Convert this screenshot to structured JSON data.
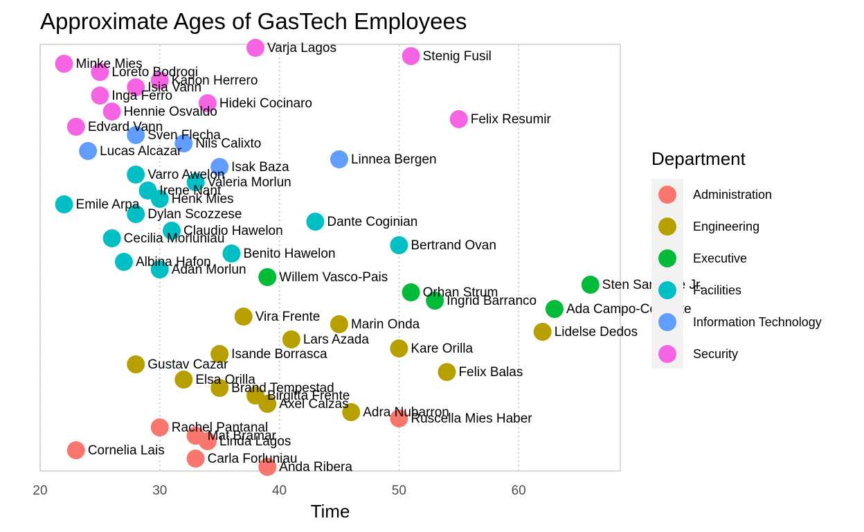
{
  "chart_data": {
    "type": "scatter",
    "title": "Approximate Ages of GasTech Employees",
    "xlabel": "Time",
    "ylabel": "",
    "xlim": [
      20,
      68.5
    ],
    "x_ticks": [
      20,
      30,
      40,
      50,
      60
    ],
    "grid": "vertical dotted",
    "legend": {
      "title": "Department",
      "placement": "right",
      "entries": [
        {
          "name": "Administration",
          "color": "#F8766D"
        },
        {
          "name": "Engineering",
          "color": "#B79F00"
        },
        {
          "name": "Executive",
          "color": "#00BA38"
        },
        {
          "name": "Facilities",
          "color": "#00BFC4"
        },
        {
          "name": "Information Technology",
          "color": "#619CFF"
        },
        {
          "name": "Security",
          "color": "#F564E3"
        }
      ]
    },
    "points": [
      {
        "label": "Varja Lagos",
        "x": 38,
        "dept": "Security"
      },
      {
        "label": "Stenig Fusil",
        "x": 51,
        "dept": "Security"
      },
      {
        "label": "Minke Mies",
        "x": 22,
        "dept": "Security"
      },
      {
        "label": "Loreto Bodrogi",
        "x": 25,
        "dept": "Security"
      },
      {
        "label": "Kanon Herrero",
        "x": 30,
        "dept": "Security"
      },
      {
        "label": "Isia Vann",
        "x": 28,
        "dept": "Security"
      },
      {
        "label": "Inga Ferro",
        "x": 25,
        "dept": "Security"
      },
      {
        "label": "Hideki Cocinaro",
        "x": 34,
        "dept": "Security"
      },
      {
        "label": "Hennie Osvaldo",
        "x": 26,
        "dept": "Security"
      },
      {
        "label": "Felix Resumir",
        "x": 55,
        "dept": "Security"
      },
      {
        "label": "Edvard Vann",
        "x": 23,
        "dept": "Security"
      },
      {
        "label": "Sven Flecha",
        "x": 28,
        "dept": "Information Technology"
      },
      {
        "label": "Nils Calixto",
        "x": 32,
        "dept": "Information Technology"
      },
      {
        "label": "Lucas Alcazar",
        "x": 24,
        "dept": "Information Technology"
      },
      {
        "label": "Linnea Bergen",
        "x": 45,
        "dept": "Information Technology"
      },
      {
        "label": "Isak Baza",
        "x": 35,
        "dept": "Information Technology"
      },
      {
        "label": "Varro Awelon",
        "x": 28,
        "dept": "Facilities"
      },
      {
        "label": "Valeria Morlun",
        "x": 33,
        "dept": "Facilities"
      },
      {
        "label": "Irene Nant",
        "x": 29,
        "dept": "Facilities"
      },
      {
        "label": "Henk Mies",
        "x": 30,
        "dept": "Facilities"
      },
      {
        "label": "Emile Arpa",
        "x": 22,
        "dept": "Facilities"
      },
      {
        "label": "Dylan Scozzese",
        "x": 28,
        "dept": "Facilities"
      },
      {
        "label": "Dante Coginian",
        "x": 43,
        "dept": "Facilities"
      },
      {
        "label": "Claudio Hawelon",
        "x": 31,
        "dept": "Facilities"
      },
      {
        "label": "Cecilia Morluniau",
        "x": 26,
        "dept": "Facilities"
      },
      {
        "label": "Bertrand Ovan",
        "x": 50,
        "dept": "Facilities"
      },
      {
        "label": "Benito Hawelon",
        "x": 36,
        "dept": "Facilities"
      },
      {
        "label": "Albina Hafon",
        "x": 27,
        "dept": "Facilities"
      },
      {
        "label": "Adan Morlun",
        "x": 30,
        "dept": "Facilities"
      },
      {
        "label": "Willem Vasco-Pais",
        "x": 39,
        "dept": "Executive"
      },
      {
        "label": "Sten Sanjorge Jr.",
        "x": 66,
        "dept": "Executive"
      },
      {
        "label": "Orhan Strum",
        "x": 51,
        "dept": "Executive"
      },
      {
        "label": "Ingrid Barranco",
        "x": 53,
        "dept": "Executive"
      },
      {
        "label": "Ada Campo-Corrente",
        "x": 63,
        "dept": "Executive"
      },
      {
        "label": "Vira Frente",
        "x": 37,
        "dept": "Engineering"
      },
      {
        "label": "Marin Onda",
        "x": 45,
        "dept": "Engineering"
      },
      {
        "label": "Lidelse Dedos",
        "x": 62,
        "dept": "Engineering"
      },
      {
        "label": "Lars Azada",
        "x": 41,
        "dept": "Engineering"
      },
      {
        "label": "Kare Orilla",
        "x": 50,
        "dept": "Engineering"
      },
      {
        "label": "Isande Borrasca",
        "x": 35,
        "dept": "Engineering"
      },
      {
        "label": "Gustav Cazar",
        "x": 28,
        "dept": "Engineering"
      },
      {
        "label": "Felix Balas",
        "x": 54,
        "dept": "Engineering"
      },
      {
        "label": "Elsa Orilla",
        "x": 32,
        "dept": "Engineering"
      },
      {
        "label": "Brand Tempestad",
        "x": 35,
        "dept": "Engineering"
      },
      {
        "label": "Birgitta Frente",
        "x": 38,
        "dept": "Engineering"
      },
      {
        "label": "Axel Calzas",
        "x": 39,
        "dept": "Engineering"
      },
      {
        "label": "Adra Nubarron",
        "x": 46,
        "dept": "Engineering"
      },
      {
        "label": "Ruscella Mies Haber",
        "x": 50,
        "dept": "Administration"
      },
      {
        "label": "Rachel Pantanal",
        "x": 30,
        "dept": "Administration"
      },
      {
        "label": "Mat Bramar",
        "x": 33,
        "dept": "Administration"
      },
      {
        "label": "Linda Lagos",
        "x": 34,
        "dept": "Administration"
      },
      {
        "label": "Cornelia Lais",
        "x": 23,
        "dept": "Administration"
      },
      {
        "label": "Carla Forluniau",
        "x": 33,
        "dept": "Administration"
      },
      {
        "label": "Anda Ribera",
        "x": 39,
        "dept": "Administration"
      }
    ]
  }
}
